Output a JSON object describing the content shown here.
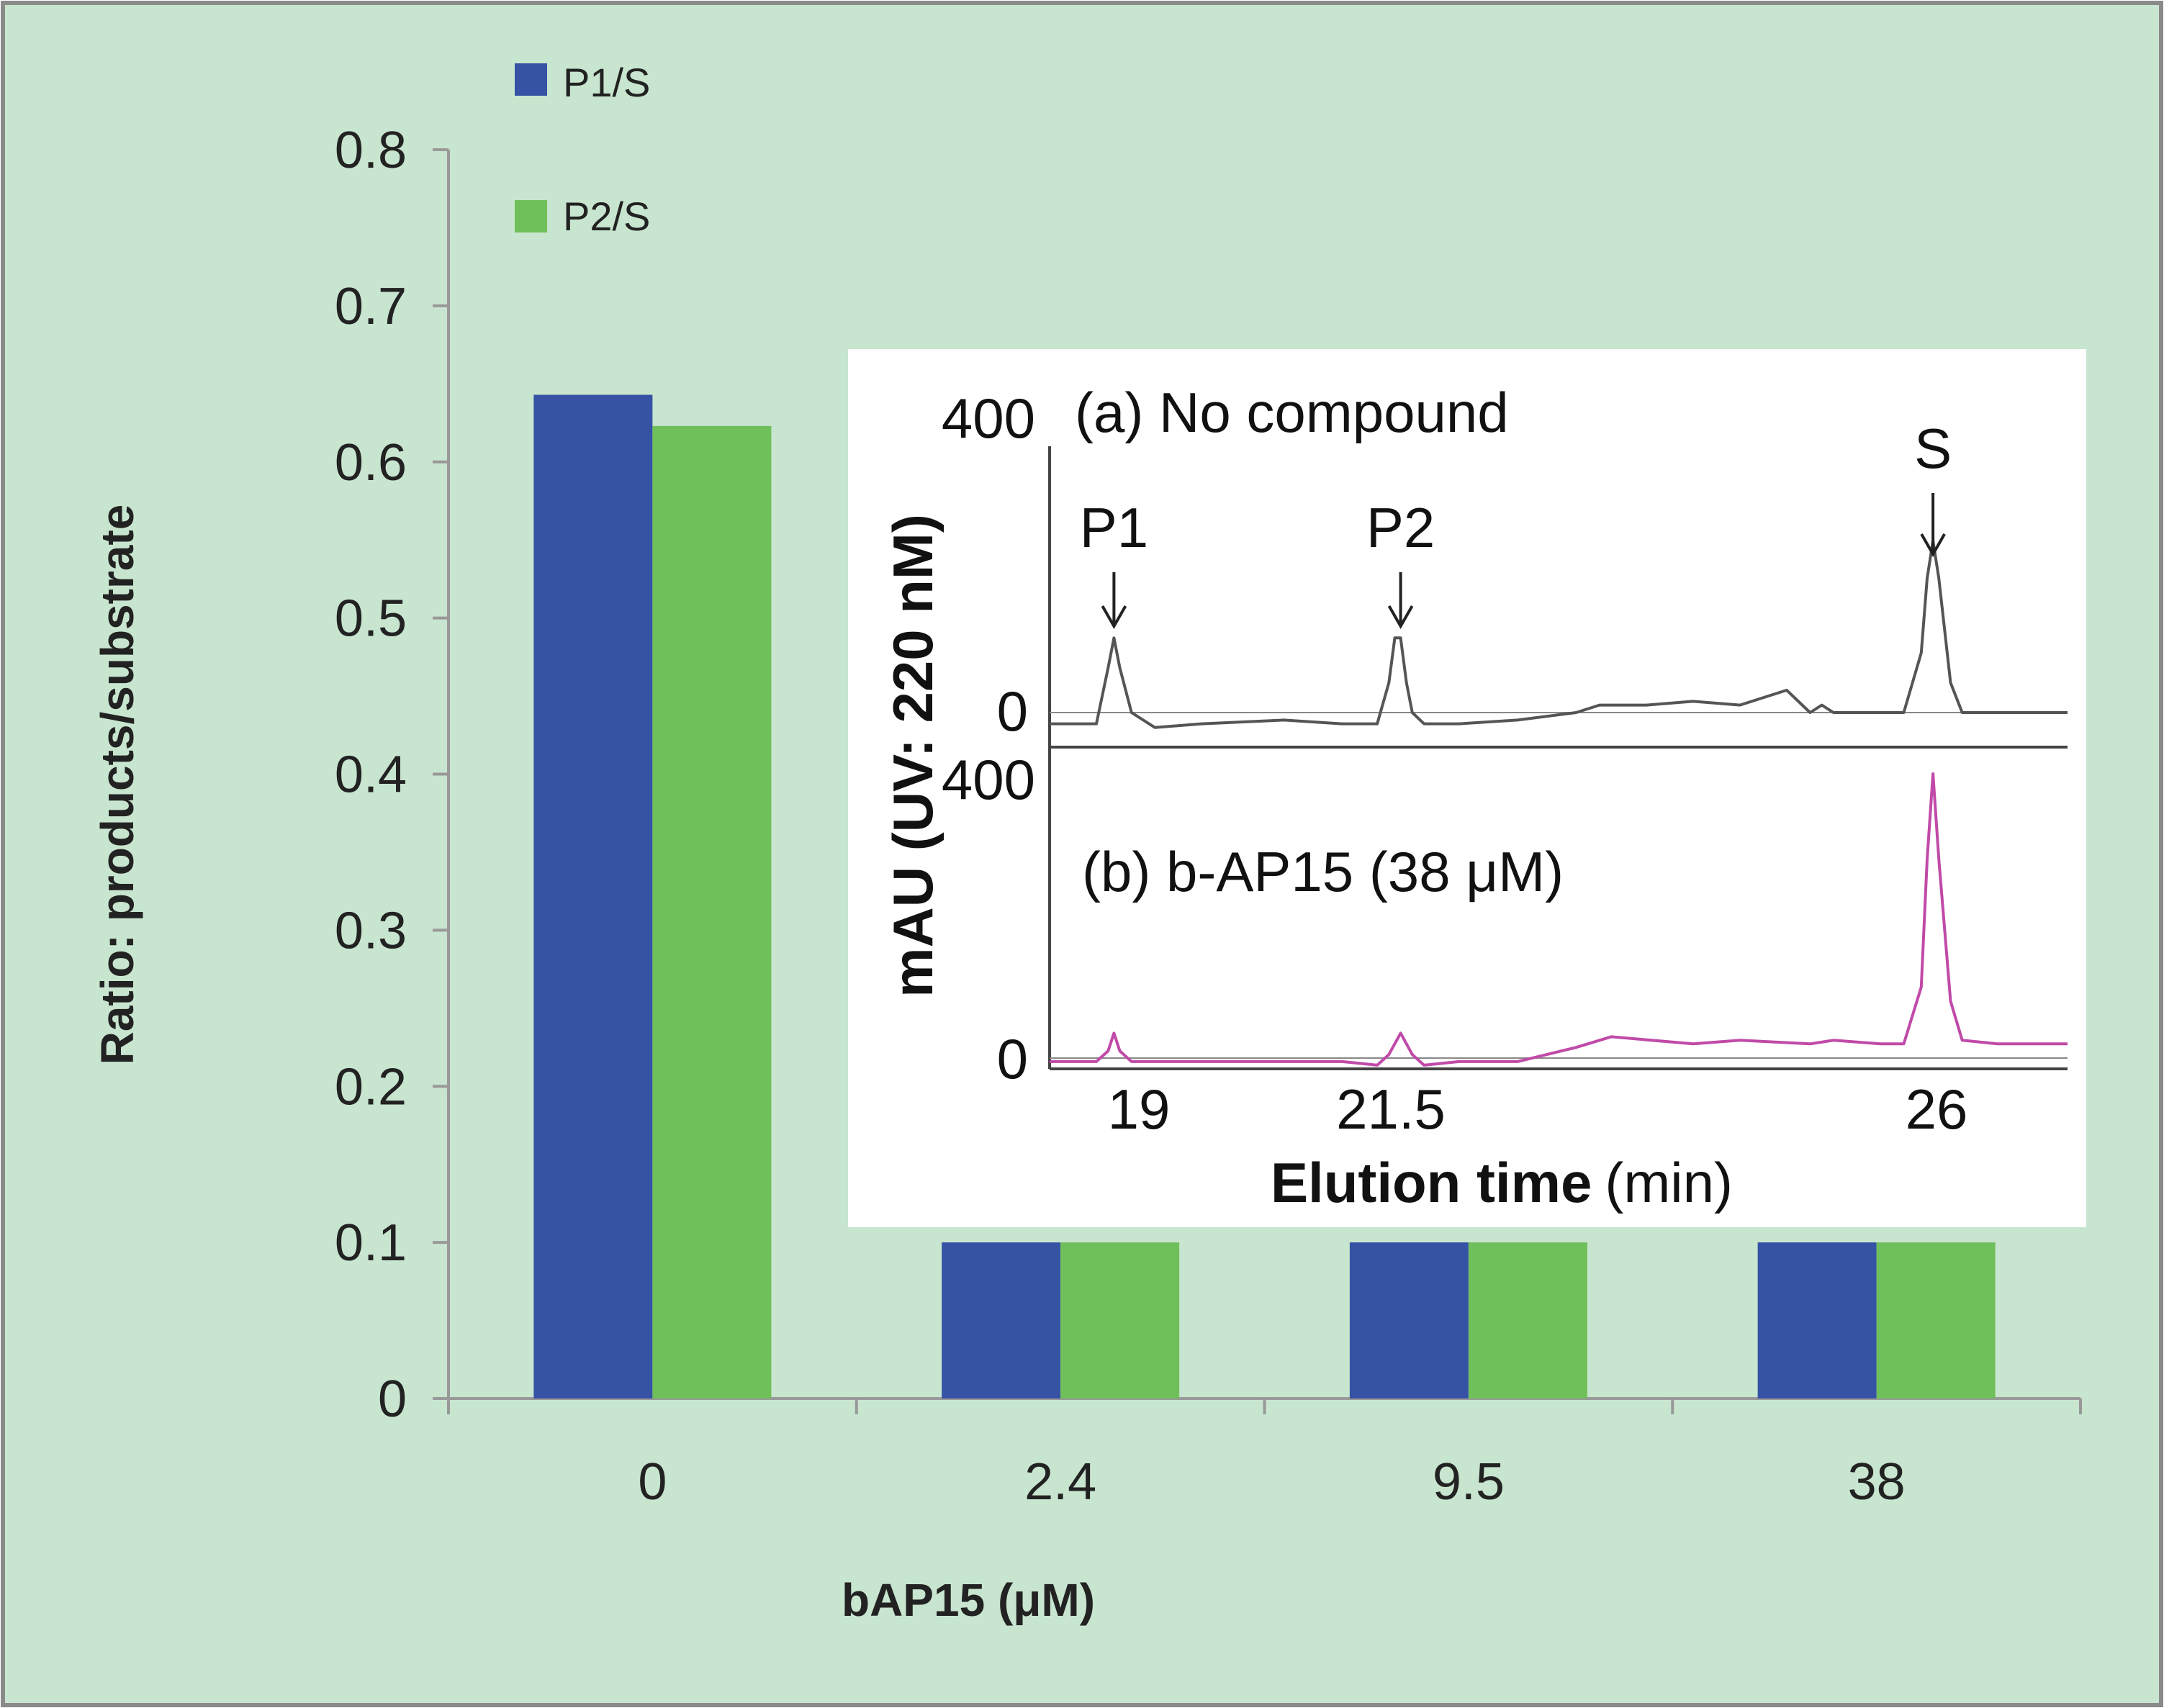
{
  "colors": {
    "background": "#c8e5cf",
    "frame": "#8a8a8a",
    "axis": "#999999",
    "series_p1": "#3652a4",
    "series_p2": "#6fbf5a",
    "inset_bg": "#ffffff",
    "trace_a": "#555555",
    "trace_b": "#c04aa8"
  },
  "chart_data": [
    {
      "type": "bar",
      "categories": [
        "0",
        "2.4",
        "9.5",
        "38"
      ],
      "series": [
        {
          "name": "P1/S",
          "values": [
            0.643,
            0.1,
            0.1,
            0.1
          ]
        },
        {
          "name": "P2/S",
          "values": [
            0.623,
            0.1,
            0.1,
            0.1
          ]
        }
      ],
      "title": "",
      "xlabel": "bAP15 (μM)",
      "ylabel": "Ratio: products/substrate",
      "ylim": [
        0,
        0.8
      ],
      "yticks": [
        "0",
        "0.1",
        "0.2",
        "0.3",
        "0.4",
        "0.5",
        "0.6",
        "0.7",
        "0.8"
      ],
      "legend": "top-left",
      "grid": false
    },
    {
      "type": "line",
      "xlabel": "Elution time",
      "xlabel_unit": "(min)",
      "ylabel": "mAU (UV: 220 nM)",
      "xticks": [
        "19",
        "21.5",
        "26"
      ],
      "xlim": [
        18.5,
        27.2
      ],
      "panels": [
        {
          "label": "(a) No compound",
          "ylim": [
            0,
            400
          ],
          "yticks": [
            "0",
            "400"
          ],
          "peak_labels": [
            {
              "text": "P1",
              "x": 19.05
            },
            {
              "text": "P2",
              "x": 21.5
            },
            {
              "text": "S",
              "x": 26.05
            }
          ],
          "series": [
            {
              "x": [
                18.5,
                18.9,
                19.0,
                19.05,
                19.1,
                19.2,
                19.4,
                19.8,
                20.5,
                21.0,
                21.3,
                21.4,
                21.45,
                21.5,
                21.55,
                21.6,
                21.7,
                22.0,
                22.5,
                23.0,
                23.2,
                23.6,
                24.0,
                24.4,
                24.8,
                25.0,
                25.1,
                25.2,
                25.6,
                25.8,
                25.95,
                26.0,
                26.05,
                26.1,
                26.2,
                26.3,
                26.6,
                27.2
              ],
              "y": [
                -15,
                -15,
                60,
                100,
                60,
                0,
                -20,
                -15,
                -10,
                -15,
                -15,
                40,
                100,
                100,
                40,
                0,
                -15,
                -15,
                -10,
                0,
                10,
                10,
                15,
                10,
                30,
                0,
                10,
                0,
                0,
                0,
                80,
                180,
                230,
                180,
                40,
                0,
                0,
                0
              ]
            }
          ]
        },
        {
          "label": "(b) b-AP15 (38 μM)",
          "ylim": [
            0,
            400
          ],
          "yticks": [
            "0",
            "400"
          ],
          "series": [
            {
              "x": [
                18.5,
                18.9,
                19.0,
                19.05,
                19.1,
                19.2,
                19.4,
                20.5,
                21.0,
                21.3,
                21.4,
                21.5,
                21.6,
                21.7,
                22.0,
                22.5,
                23.0,
                23.3,
                24.0,
                24.4,
                25.0,
                25.2,
                25.6,
                25.8,
                25.95,
                26.0,
                26.05,
                26.1,
                26.2,
                26.3,
                26.6,
                27.2
              ],
              "y": [
                -5,
                -5,
                10,
                35,
                10,
                -5,
                -5,
                -5,
                -5,
                -10,
                5,
                35,
                5,
                -10,
                -5,
                -5,
                15,
                30,
                20,
                25,
                20,
                25,
                20,
                20,
                100,
                280,
                400,
                280,
                80,
                25,
                20,
                20
              ]
            }
          ]
        }
      ]
    }
  ]
}
